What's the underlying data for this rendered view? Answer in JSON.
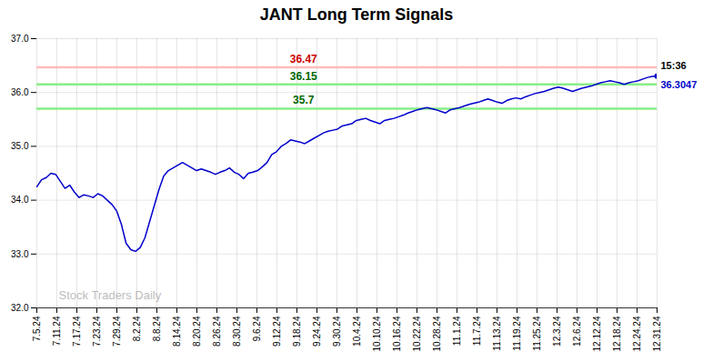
{
  "chart_data": {
    "type": "line",
    "title": "JANT Long Term Signals",
    "color": "#0000cc",
    "marker": "last",
    "grid": true,
    "x": [
      0,
      1,
      2,
      3,
      4,
      5,
      6,
      7,
      8,
      9,
      10,
      11,
      12,
      13,
      14,
      15,
      16,
      17,
      18,
      19,
      20,
      21,
      22,
      23,
      24,
      25,
      26,
      27,
      28,
      29,
      30,
      31,
      32,
      33,
      34,
      35,
      36,
      37,
      38,
      39,
      40,
      41,
      42,
      43,
      44,
      45,
      46,
      47,
      48,
      49,
      50,
      51,
      52,
      53,
      54,
      55,
      56,
      57,
      58,
      59,
      60,
      61,
      62,
      63,
      64,
      65,
      66,
      67,
      68,
      69,
      70,
      71,
      72,
      73,
      74,
      75,
      76,
      77,
      78,
      79,
      80,
      81,
      82,
      83,
      84,
      85,
      86,
      87,
      88,
      89,
      90,
      91,
      92,
      93,
      94,
      95,
      96,
      97,
      98,
      99,
      100,
      101,
      102,
      103,
      104,
      105,
      106,
      107,
      108,
      109,
      110,
      111,
      112,
      113,
      114,
      115,
      116,
      117,
      118,
      119,
      120,
      121,
      122,
      123,
      124,
      125,
      126,
      127,
      128,
      129,
      130,
      131,
      132
    ],
    "values": [
      34.25,
      34.38,
      34.42,
      34.5,
      34.48,
      34.35,
      34.22,
      34.28,
      34.15,
      34.05,
      34.1,
      34.08,
      34.05,
      34.12,
      34.08,
      34.0,
      33.92,
      33.8,
      33.55,
      33.2,
      33.08,
      33.05,
      33.12,
      33.3,
      33.6,
      33.9,
      34.2,
      34.45,
      34.55,
      34.6,
      34.65,
      34.7,
      34.65,
      34.6,
      34.55,
      34.58,
      34.55,
      34.52,
      34.48,
      34.52,
      34.55,
      34.6,
      34.52,
      34.48,
      34.4,
      34.5,
      34.52,
      34.55,
      34.62,
      34.7,
      34.85,
      34.9,
      35.0,
      35.05,
      35.12,
      35.1,
      35.08,
      35.05,
      35.1,
      35.15,
      35.2,
      35.25,
      35.28,
      35.3,
      35.32,
      35.38,
      35.4,
      35.42,
      35.48,
      35.5,
      35.52,
      35.48,
      35.45,
      35.42,
      35.48,
      35.5,
      35.52,
      35.55,
      35.58,
      35.62,
      35.65,
      35.68,
      35.7,
      35.72,
      35.7,
      35.68,
      35.65,
      35.62,
      35.68,
      35.7,
      35.72,
      35.75,
      35.78,
      35.8,
      35.82,
      35.85,
      35.88,
      35.85,
      35.82,
      35.8,
      35.85,
      35.88,
      35.9,
      35.88,
      35.92,
      35.95,
      35.98,
      36.0,
      36.02,
      36.05,
      36.08,
      36.1,
      36.08,
      36.05,
      36.02,
      36.05,
      36.08,
      36.1,
      36.12,
      36.15,
      36.18,
      36.2,
      36.22,
      36.2,
      36.18,
      36.15,
      36.18,
      36.2,
      36.22,
      36.25,
      36.28,
      36.3,
      36.3047
    ],
    "xlim": [
      0,
      132
    ],
    "xticks": [
      {
        "value": 0,
        "label": "7.5.24"
      },
      {
        "value": 4.258064516129032,
        "label": "7.11.24"
      },
      {
        "value": 8.516129032258064,
        "label": "7.17.24"
      },
      {
        "value": 12.774193548387096,
        "label": "7.23.24"
      },
      {
        "value": 17.032258064516128,
        "label": "7.29.24"
      },
      {
        "value": 21.29032258064516,
        "label": "8.2.24"
      },
      {
        "value": 25.548387096774192,
        "label": "8.8.24"
      },
      {
        "value": 29.806451612903224,
        "label": "8.14.24"
      },
      {
        "value": 34.064516129032256,
        "label": "8.20.24"
      },
      {
        "value": 38.32258064516129,
        "label": "8.26.24"
      },
      {
        "value": 42.58064516129032,
        "label": "8.30.24"
      },
      {
        "value": 46.83870967741935,
        "label": "9.6.24"
      },
      {
        "value": 51.096774193548384,
        "label": "9.12.24"
      },
      {
        "value": 55.35483870967742,
        "label": "9.18.24"
      },
      {
        "value": 59.61290322580645,
        "label": "9.24.24"
      },
      {
        "value": 63.87096774193548,
        "label": "9.30.24"
      },
      {
        "value": 68.12903225806451,
        "label": "10.4.24"
      },
      {
        "value": 72.38709677419355,
        "label": "10.10.24"
      },
      {
        "value": 76.64516129032258,
        "label": "10.16.24"
      },
      {
        "value": 80.90322580645162,
        "label": "10.22.24"
      },
      {
        "value": 85.16129032258064,
        "label": "10.28.24"
      },
      {
        "value": 89.41935483870968,
        "label": "11.1.24"
      },
      {
        "value": 93.6774193548387,
        "label": "11.7.24"
      },
      {
        "value": 97.93548387096774,
        "label": "11.13.24"
      },
      {
        "value": 102.19354838709677,
        "label": "11.19.24"
      },
      {
        "value": 106.45161290322581,
        "label": "11.25.24"
      },
      {
        "value": 110.70967741935483,
        "label": "12.3.24"
      },
      {
        "value": 114.96774193548387,
        "label": "12.6.24"
      },
      {
        "value": 119.2258064516129,
        "label": "12.12.24"
      },
      {
        "value": 123.48387096774194,
        "label": "12.18.24"
      },
      {
        "value": 127.74193548387096,
        "label": "12.24.24"
      },
      {
        "value": 132,
        "label": "12.31.24"
      }
    ],
    "ylim": [
      32,
      37
    ],
    "yticks": [
      32,
      33,
      34,
      35,
      36,
      37
    ],
    "hlines": [
      {
        "y": 36.47,
        "color": "#ffbbbb"
      },
      {
        "y": 36.15,
        "color": "#88ee88"
      },
      {
        "y": 35.7,
        "color": "#88ee88"
      }
    ],
    "annotations": [
      {
        "text": "36.47",
        "x": 56.76,
        "y": 36.47,
        "color": "#cc0000"
      },
      {
        "text": "36.15",
        "x": 56.76,
        "y": 36.15,
        "color": "#006600"
      },
      {
        "text": "35.7",
        "x": 56.76,
        "y": 35.7,
        "color": "#006600"
      },
      {
        "text": "15:36",
        "x": 132,
        "y": 36.3047,
        "color": "#000000"
      },
      {
        "text": "36.3047",
        "x": 132,
        "y": 36.3047,
        "color": "#0000cc"
      }
    ],
    "watermark": {
      "text": "Stock Traders Daily",
      "color": "#aaaaaa"
    }
  }
}
